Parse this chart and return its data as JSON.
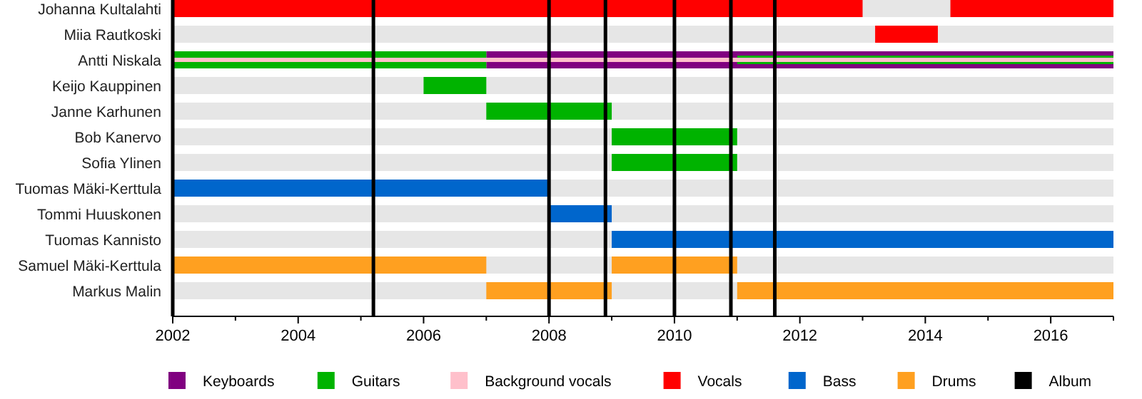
{
  "chart_data": {
    "type": "bar",
    "orientation": "horizontal",
    "categories": [
      "Johanna Kultalahti",
      "Miia Rautkoski",
      "Antti Niskala",
      "Keijo Kauppinen",
      "Janne Karhunen",
      "Bob Kanervo",
      "Sofia Ylinen",
      "Tuomas Mäki-Kerttula",
      "Tommi Huuskonen",
      "Tuomas Kannisto",
      "Samuel Mäki-Kerttula",
      "Markus Malin"
    ],
    "series": [
      {
        "name": "Keyboards",
        "color": "#800080",
        "values": [
          null,
          null,
          10,
          null,
          null,
          null,
          null,
          null,
          null,
          null,
          null,
          null
        ],
        "base": [
          null,
          null,
          2007,
          null,
          null,
          null,
          null,
          null,
          null,
          null,
          null,
          null
        ]
      },
      {
        "name": "Guitars",
        "color": "#00b300",
        "values": [
          null,
          null,
          5,
          1,
          2,
          2,
          2,
          null,
          null,
          null,
          null,
          null
        ],
        "base": [
          null,
          null,
          2002,
          2006,
          2007,
          2009,
          2009,
          null,
          null,
          null,
          null,
          null
        ]
      },
      {
        "color": "#00b300",
        "values": [
          null,
          null,
          6,
          null,
          null,
          null,
          null,
          null,
          null,
          null,
          null,
          null
        ],
        "base": [
          null,
          null,
          2011,
          null,
          null,
          null,
          null,
          null,
          null,
          null,
          null,
          null
        ]
      },
      {
        "name": "Background vocals",
        "color": "#ffc0cb",
        "values": [
          null,
          null,
          15,
          null,
          null,
          null,
          null,
          null,
          null,
          null,
          null,
          null
        ],
        "base": [
          null,
          null,
          2002,
          null,
          null,
          null,
          null,
          null,
          null,
          null,
          null,
          null
        ]
      },
      {
        "name": "Vocals",
        "color": "#ff0000",
        "values": [
          11,
          1,
          null,
          null,
          null,
          null,
          null,
          null,
          null,
          null,
          null,
          null
        ],
        "base": [
          2002,
          2013.2,
          null,
          null,
          null,
          null,
          null,
          null,
          null,
          null,
          null,
          null
        ]
      },
      {
        "color": "#ff0000",
        "values": [
          2.6,
          null,
          null,
          null,
          null,
          null,
          null,
          null,
          null,
          null,
          null,
          null
        ],
        "base": [
          2014.4,
          null,
          null,
          null,
          null,
          null,
          null,
          null,
          null,
          null,
          null,
          null
        ]
      },
      {
        "name": "Bass",
        "color": "#0066cc",
        "values": [
          null,
          null,
          null,
          null,
          null,
          null,
          null,
          6,
          1,
          8,
          null,
          null
        ],
        "base": [
          null,
          null,
          null,
          null,
          null,
          null,
          null,
          2002,
          2008,
          2009,
          null,
          null
        ]
      },
      {
        "name": "Drums",
        "color": "#ffa020",
        "values": [
          null,
          null,
          null,
          null,
          null,
          null,
          null,
          null,
          null,
          null,
          5,
          2
        ],
        "base": [
          null,
          null,
          null,
          null,
          null,
          null,
          null,
          null,
          null,
          null,
          2002,
          2007
        ]
      },
      {
        "color": "#ffa020",
        "values": [
          null,
          null,
          null,
          null,
          null,
          null,
          null,
          null,
          null,
          null,
          2,
          6
        ],
        "base": [
          null,
          null,
          null,
          null,
          null,
          null,
          null,
          null,
          null,
          null,
          2009,
          2011
        ]
      }
    ],
    "xlim": [
      2002,
      2017
    ],
    "xticks": [
      2002,
      {
        "value": 2003,
        "label": null
      },
      2004,
      {
        "value": 2005,
        "label": null
      },
      2006,
      {
        "value": 2007,
        "label": null
      },
      2008,
      {
        "value": 2009,
        "label": null
      },
      2010,
      {
        "value": 2011,
        "label": null
      },
      2012,
      {
        "value": 2013,
        "label": null
      },
      2014,
      {
        "value": 2015,
        "label": null
      },
      2016,
      {
        "value": 2017,
        "label": null
      }
    ],
    "ref_lines": [
      {
        "axis": "x",
        "value": 2005.2,
        "color": "#000000"
      },
      {
        "axis": "x",
        "value": 2008,
        "color": "#000000"
      },
      {
        "axis": "x",
        "value": 2008.9,
        "color": "#000000"
      },
      {
        "axis": "x",
        "value": 2010,
        "color": "#000000"
      },
      {
        "axis": "x",
        "value": 2010.9,
        "color": "#000000"
      },
      {
        "axis": "x",
        "value": 2011.6,
        "color": "#000000"
      }
    ],
    "annotations": [
      "Album"
    ],
    "legend": "bottom"
  }
}
